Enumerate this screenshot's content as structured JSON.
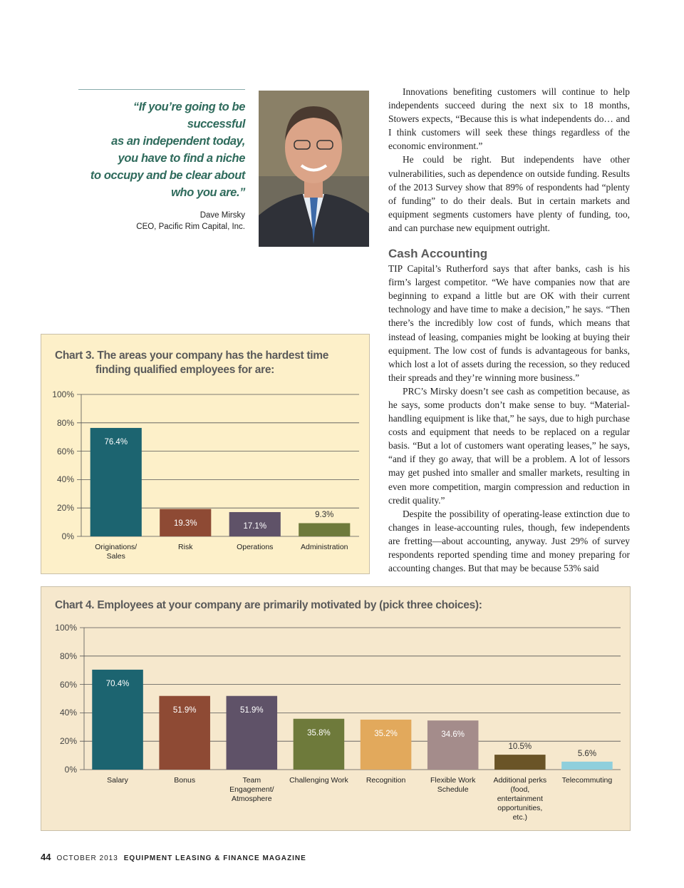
{
  "quote": {
    "lines": [
      "“If you’re going to be successful",
      "as an independent today,",
      "you have to find a niche",
      "to occupy and be clear about",
      "who you are.”"
    ],
    "name": "Dave Mirsky",
    "role": "CEO, Pacific Rim Capital, Inc."
  },
  "article": {
    "top_paragraphs": [
      "Innovations benefiting customers will continue to help independents succeed during the next six to 18 months, Stowers expects, “Because this is what independents do… and I think customers will seek these things regardless of the economic environment.”",
      "He could be right. But independents have other vulnerabilities, such as dependence on outside funding. Results of the 2013 Survey show that 89% of respondents had “plenty of funding” to do their deals. But in certain markets and equipment segments customers have plenty of funding, too, and can purchase new equipment outright."
    ],
    "heading": "Cash Accounting",
    "paragraphs": [
      "TIP Capital’s Rutherford says that after banks, cash is his firm’s largest competitor. “We have companies now that are beginning to expand a little but are OK with their current technology and have time to make a decision,” he says. “Then there’s the incredibly low cost of funds, which means that instead of leasing, companies might be looking at buying their equipment. The low cost of funds is advantageous for banks, which lost a lot of assets during the recession, so they reduced their spreads and they’re winning more business.”",
      "PRC’s Mirsky doesn’t see cash as competition because, as he says, some products don’t make sense to buy. “Material-handling equipment is like that,” he says, due to high purchase costs and equipment that needs to be replaced on a regular basis. “But a lot of customers want operating leases,” he says, “and if they go away, that will be a problem. A lot of lessors may get pushed into smaller and smaller markets, resulting in even more competition, margin compression and reduction in credit quality.”",
      "Despite the possibility of operating-lease extinction due to changes in lease-accounting rules, though, few independents are fretting—about accounting, anyway. Just 29% of survey respondents reported spending time and money preparing for accounting changes. But that may be because 53% said"
    ]
  },
  "chart_data": [
    {
      "type": "bar",
      "title": "Chart 3. The areas your company has the hardest time finding qualified employees for are:",
      "categories": [
        "Originations/ Sales",
        "Risk",
        "Operations",
        "Administration"
      ],
      "values": [
        76.4,
        19.3,
        17.1,
        9.3
      ],
      "value_labels": [
        "76.4%",
        "19.3%",
        "17.1%",
        "9.3%"
      ],
      "colors": [
        "#1c6470",
        "#8e4a34",
        "#5f5268",
        "#6e7a3b"
      ],
      "ylim": [
        0,
        100
      ],
      "yticks": [
        {
          "value": 0,
          "label": "0%"
        },
        {
          "value": 20,
          "label": "20%"
        },
        {
          "value": 40,
          "label": "40%"
        },
        {
          "value": 60,
          "label": "60%"
        },
        {
          "value": 80,
          "label": "80%"
        },
        {
          "value": 100,
          "label": "100%"
        }
      ],
      "grid": true
    },
    {
      "type": "bar",
      "title": "Chart 4. Employees at your company are primarily motivated by (pick three choices):",
      "categories": [
        "Salary",
        "Bonus",
        "Team Engagement/ Atmosphere",
        "Challenging Work",
        "Recognition",
        "Flexible Work Schedule",
        "Additional perks (food, entertainment opportunities, etc.)",
        "Telecommuting"
      ],
      "values": [
        70.4,
        51.9,
        51.9,
        35.8,
        35.2,
        34.6,
        10.5,
        5.6
      ],
      "value_labels": [
        "70.4%",
        "51.9%",
        "51.9%",
        "35.8%",
        "35.2%",
        "34.6%",
        "10.5%",
        "5.6%"
      ],
      "colors": [
        "#1c6470",
        "#8e4a34",
        "#5f5268",
        "#6e7a3b",
        "#e2a95c",
        "#a48c8b",
        "#6a5427",
        "#8fcfdc"
      ],
      "ylim": [
        0,
        100
      ],
      "yticks": [
        {
          "value": 0,
          "label": "0%"
        },
        {
          "value": 20,
          "label": "20%"
        },
        {
          "value": 40,
          "label": "40%"
        },
        {
          "value": 60,
          "label": "60%"
        },
        {
          "value": 80,
          "label": "80%"
        },
        {
          "value": 100,
          "label": "100%"
        }
      ],
      "grid": true
    }
  ],
  "footer": {
    "page": "44",
    "issue": "OCTOBER 2013",
    "magazine": "EQUIPMENT LEASING & FINANCE MAGAZINE"
  }
}
